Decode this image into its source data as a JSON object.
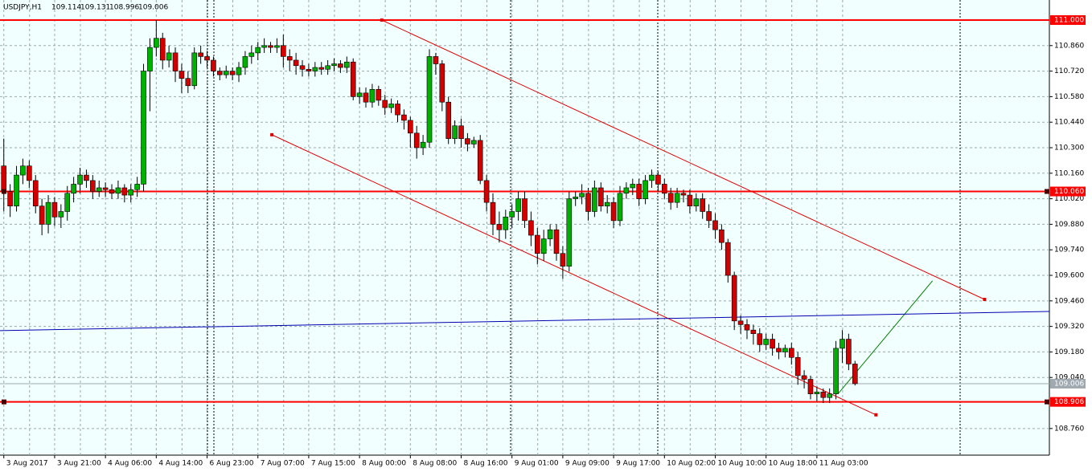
{
  "chart_data": {
    "type": "candlestick",
    "title": "USDJPY,H1",
    "up_color": "#00b000",
    "down_color": "#d40000",
    "background": "#f2ffff",
    "open": [
      110.2,
      110.06,
      109.98,
      110.15,
      110.2,
      110.12,
      109.98,
      109.88,
      110.0,
      109.92,
      109.95,
      110.05,
      110.1,
      110.15,
      110.12,
      110.06,
      110.08,
      110.07,
      110.05,
      110.08,
      110.04,
      110.07,
      110.1,
      110.72,
      110.85,
      110.9,
      110.78,
      110.82,
      110.72,
      110.68,
      110.64,
      110.82,
      110.8,
      110.78,
      110.72,
      110.7,
      110.72,
      110.7,
      110.74,
      110.8,
      110.82,
      110.85,
      110.86,
      110.85,
      110.86,
      110.8,
      110.78,
      110.75,
      110.73,
      110.72,
      110.74,
      110.73,
      110.75,
      110.76,
      110.74,
      110.77,
      110.58,
      110.6,
      110.55,
      110.62,
      110.56,
      110.52,
      110.54,
      110.48,
      110.45,
      110.38,
      110.3,
      110.33,
      110.8,
      110.76,
      110.55,
      110.35,
      110.42,
      110.35,
      110.32,
      110.34,
      110.12,
      110.0,
      109.88,
      109.85,
      109.92,
      109.95,
      110.02,
      109.9,
      109.82,
      109.72,
      109.8,
      109.85,
      109.72,
      109.65,
      110.02,
      110.03,
      110.05,
      109.95,
      110.08,
      109.98,
      110.0,
      109.9,
      110.05,
      110.08,
      110.1,
      110.02,
      110.12,
      110.15,
      110.1,
      110.05,
      110.0,
      110.05,
      110.04,
      109.98,
      110.02,
      109.95,
      109.9,
      109.85,
      109.78,
      109.6,
      109.35,
      109.33,
      109.3,
      109.28,
      109.22,
      109.25,
      109.2,
      109.18,
      109.2,
      109.15,
      109.05,
      109.03,
      108.95,
      108.96,
      108.93,
      108.95,
      109.2,
      109.25,
      109.114
    ],
    "high": [
      110.35,
      110.1,
      110.2,
      110.24,
      110.23,
      110.15,
      110.02,
      110.04,
      110.03,
      109.99,
      110.09,
      110.14,
      110.19,
      110.18,
      110.15,
      110.12,
      110.11,
      110.1,
      110.12,
      110.1,
      110.1,
      110.14,
      110.76,
      110.9,
      111.0,
      110.93,
      110.86,
      110.85,
      110.76,
      110.72,
      110.85,
      110.86,
      110.83,
      110.8,
      110.74,
      110.75,
      110.74,
      110.77,
      110.83,
      110.86,
      110.88,
      110.9,
      110.88,
      110.9,
      110.92,
      110.84,
      110.82,
      110.78,
      110.76,
      110.77,
      110.77,
      110.78,
      110.79,
      110.78,
      110.8,
      110.79,
      110.63,
      110.63,
      110.65,
      110.64,
      110.59,
      110.57,
      110.56,
      110.51,
      110.47,
      110.42,
      110.37,
      110.84,
      110.82,
      110.78,
      110.58,
      110.45,
      110.46,
      110.38,
      110.36,
      110.37,
      110.15,
      110.05,
      109.95,
      109.96,
      109.99,
      110.06,
      110.06,
      109.95,
      109.86,
      109.85,
      109.88,
      109.88,
      109.76,
      110.06,
      110.06,
      110.1,
      110.08,
      110.12,
      110.11,
      110.04,
      110.03,
      110.09,
      110.11,
      110.13,
      110.13,
      110.15,
      110.18,
      110.17,
      110.13,
      110.08,
      110.08,
      110.07,
      110.07,
      110.05,
      110.05,
      109.99,
      109.94,
      109.88,
      109.8,
      109.62,
      109.38,
      109.36,
      109.33,
      109.31,
      109.28,
      109.28,
      109.23,
      109.22,
      109.23,
      109.18,
      109.08,
      109.05,
      108.99,
      108.98,
      108.98,
      109.24,
      109.3,
      109.28,
      109.131
    ],
    "low": [
      109.95,
      109.92,
      109.95,
      110.1,
      110.08,
      109.94,
      109.82,
      109.83,
      109.87,
      109.86,
      109.9,
      110.0,
      110.05,
      110.08,
      110.02,
      110.03,
      110.03,
      110.02,
      110.02,
      110.0,
      110.0,
      110.03,
      110.06,
      110.5,
      110.8,
      110.73,
      110.74,
      110.66,
      110.6,
      110.6,
      110.62,
      110.76,
      110.74,
      110.69,
      110.67,
      110.68,
      110.67,
      110.66,
      110.7,
      110.76,
      110.78,
      110.82,
      110.82,
      110.82,
      110.74,
      110.72,
      110.7,
      110.69,
      110.69,
      110.69,
      110.7,
      110.7,
      110.72,
      110.71,
      110.71,
      110.56,
      110.54,
      110.52,
      110.52,
      110.53,
      110.48,
      110.49,
      110.44,
      110.4,
      110.3,
      110.24,
      110.26,
      110.3,
      110.7,
      110.5,
      110.32,
      110.32,
      110.3,
      110.28,
      110.3,
      110.1,
      109.95,
      109.82,
      109.78,
      109.8,
      109.86,
      109.9,
      109.86,
      109.76,
      109.66,
      109.68,
      109.76,
      109.68,
      109.58,
      109.62,
      109.98,
      109.99,
      109.9,
      109.92,
      109.95,
      109.94,
      109.86,
      109.87,
      110.02,
      110.04,
      109.98,
      109.99,
      110.08,
      110.06,
      110.02,
      109.96,
      109.97,
      110.0,
      109.94,
      109.95,
      109.91,
      109.86,
      109.8,
      109.74,
      109.56,
      109.3,
      109.28,
      109.25,
      109.22,
      109.18,
      109.19,
      109.16,
      109.14,
      109.15,
      109.11,
      109.0,
      108.98,
      108.92,
      108.91,
      108.9,
      108.9,
      108.92,
      109.12,
      109.08,
      108.996
    ],
    "close": [
      110.06,
      109.98,
      110.15,
      110.2,
      110.12,
      109.98,
      109.88,
      110.0,
      109.92,
      109.95,
      110.05,
      110.1,
      110.15,
      110.12,
      110.06,
      110.08,
      110.07,
      110.05,
      110.08,
      110.04,
      110.07,
      110.1,
      110.72,
      110.85,
      110.9,
      110.78,
      110.82,
      110.72,
      110.68,
      110.64,
      110.82,
      110.8,
      110.78,
      110.72,
      110.7,
      110.72,
      110.7,
      110.74,
      110.8,
      110.82,
      110.85,
      110.86,
      110.85,
      110.86,
      110.8,
      110.78,
      110.75,
      110.73,
      110.72,
      110.74,
      110.73,
      110.75,
      110.76,
      110.74,
      110.77,
      110.58,
      110.6,
      110.55,
      110.62,
      110.56,
      110.52,
      110.54,
      110.48,
      110.45,
      110.38,
      110.3,
      110.33,
      110.8,
      110.76,
      110.55,
      110.35,
      110.42,
      110.35,
      110.32,
      110.34,
      110.12,
      110.0,
      109.88,
      109.85,
      109.92,
      109.95,
      110.02,
      109.9,
      109.82,
      109.72,
      109.8,
      109.85,
      109.72,
      109.65,
      110.02,
      110.03,
      110.05,
      109.95,
      110.08,
      109.98,
      110.0,
      109.9,
      110.05,
      110.08,
      110.1,
      110.02,
      110.12,
      110.15,
      110.1,
      110.05,
      110.0,
      110.05,
      110.04,
      109.98,
      110.02,
      109.95,
      109.9,
      109.85,
      109.78,
      109.6,
      109.35,
      109.33,
      109.3,
      109.28,
      109.22,
      109.25,
      109.2,
      109.18,
      109.2,
      109.15,
      109.05,
      109.03,
      108.95,
      108.96,
      108.93,
      108.95,
      109.2,
      109.25,
      109.114,
      109.006
    ],
    "xlim": [
      -0.6,
      164.6
    ],
    "xticks": [
      {
        "value": 0,
        "label": "3 Aug 2017"
      },
      {
        "value": 8,
        "label": "3 Aug 21:00"
      },
      {
        "value": 16,
        "label": "4 Aug 06:00"
      },
      {
        "value": 24,
        "label": "4 Aug 14:00"
      },
      {
        "value": 32,
        "label": "6 Aug 23:00"
      },
      {
        "value": 40,
        "label": "7 Aug 07:00"
      },
      {
        "value": 48,
        "label": "7 Aug 15:00"
      },
      {
        "value": 56,
        "label": "8 Aug 00:00"
      },
      {
        "value": 64,
        "label": "8 Aug 08:00"
      },
      {
        "value": 72,
        "label": "8 Aug 16:00"
      },
      {
        "value": 80,
        "label": "9 Aug 01:00"
      },
      {
        "value": 88,
        "label": "9 Aug 09:00"
      },
      {
        "value": 96,
        "label": "9 Aug 17:00"
      },
      {
        "value": 104,
        "label": "10 Aug 02:00"
      },
      {
        "value": 112,
        "label": "10 Aug 10:00"
      },
      {
        "value": 120,
        "label": "10 Aug 18:00"
      },
      {
        "value": 128,
        "label": "11 Aug 03:00"
      }
    ],
    "ylim": [
      108.614,
      111.11
    ],
    "yticks": [
      {
        "value": 110.86,
        "label": "110.860"
      },
      {
        "value": 110.72,
        "label": "110.720"
      },
      {
        "value": 110.58,
        "label": "110.580"
      },
      {
        "value": 110.44,
        "label": "110.440"
      },
      {
        "value": 110.3,
        "label": "110.300"
      },
      {
        "value": 110.16,
        "label": "110.160"
      },
      {
        "value": 110.02,
        "label": "110.020"
      },
      {
        "value": 109.88,
        "label": "109.880"
      },
      {
        "value": 109.74,
        "label": "109.740"
      },
      {
        "value": 109.6,
        "label": "109.600"
      },
      {
        "value": 109.46,
        "label": "109.460"
      },
      {
        "value": 109.32,
        "label": "109.320"
      },
      {
        "value": 109.18,
        "label": "109.180"
      },
      {
        "value": 109.04,
        "label": "109.040"
      },
      {
        "value": 108.76,
        "label": "108.760"
      }
    ],
    "grid": true,
    "levels": [
      {
        "value": 111.0,
        "label": "111.000",
        "color": "#ff0000"
      },
      {
        "value": 110.06,
        "label": "110.060",
        "color": "#ff0000"
      },
      {
        "value": 108.906,
        "label": "108.906",
        "color": "#ff0000"
      },
      {
        "value": 109.006,
        "label": "109.006",
        "color": "#a0a8b0"
      }
    ],
    "trendlines": [
      {
        "color": "#e00000",
        "x": [
          59.5,
          154.4
        ],
        "y": [
          111.0,
          109.468
        ]
      },
      {
        "color": "#e00000",
        "x": [
          42.2,
          137.3
        ],
        "y": [
          110.371,
          108.835
        ]
      },
      {
        "color": "#008000",
        "x": [
          131.4,
          146.2
        ],
        "y": [
          108.953,
          109.57
        ]
      },
      {
        "color": "#0000b0",
        "x": [
          -0.6,
          164.6
        ],
        "y": [
          109.297,
          109.402
        ]
      }
    ]
  }
}
